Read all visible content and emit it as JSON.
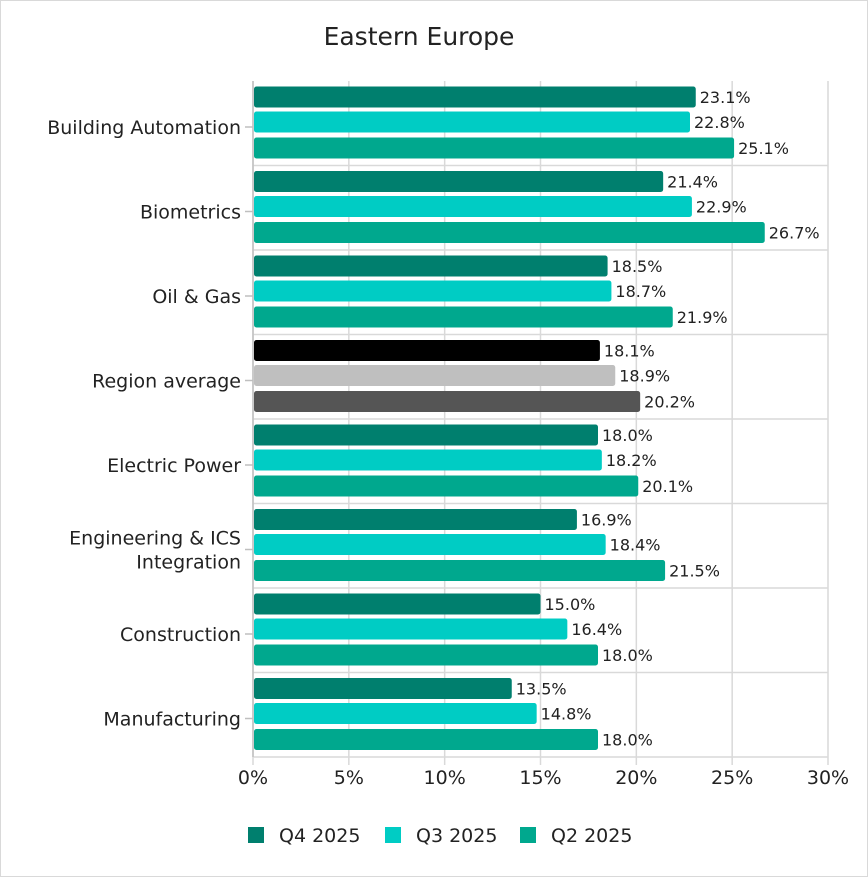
{
  "chart_data": {
    "type": "bar",
    "orientation": "horizontal",
    "title": "Eastern Europe",
    "xlabel": "",
    "ylabel": "",
    "xlim": [
      0,
      30
    ],
    "x_ticks": [
      "0%",
      "5%",
      "10%",
      "15%",
      "20%",
      "25%",
      "30%"
    ],
    "grid": true,
    "legend_position": "bottom",
    "categories": [
      "Building Automation",
      "Biometrics",
      "Oil & Gas",
      "Region average",
      "Electric Power",
      "Engineering & ICS Integration",
      "Construction",
      "Manufacturing"
    ],
    "category_lines": [
      [
        "Building Automation"
      ],
      [
        "Biometrics"
      ],
      [
        "Oil & Gas"
      ],
      [
        "Region average"
      ],
      [
        "Electric Power"
      ],
      [
        "Engineering & ICS",
        "Integration"
      ],
      [
        "Construction"
      ],
      [
        "Manufacturing"
      ]
    ],
    "series": [
      {
        "name": "Q4 2025",
        "color": "#007f6e",
        "values": [
          23.1,
          21.4,
          18.5,
          18.1,
          18.0,
          16.9,
          15.0,
          13.5
        ],
        "labels": [
          "23.1%",
          "21.4%",
          "18.5%",
          "18.1%",
          "18.0%",
          "16.9%",
          "15.0%",
          "13.5%"
        ]
      },
      {
        "name": "Q3 2025",
        "color": "#00ccc4",
        "values": [
          22.8,
          22.9,
          18.7,
          18.9,
          18.2,
          18.4,
          16.4,
          14.8
        ],
        "labels": [
          "22.8%",
          "22.9%",
          "18.7%",
          "18.9%",
          "18.2%",
          "18.4%",
          "16.4%",
          "14.8%"
        ]
      },
      {
        "name": "Q2 2025",
        "color": "#00a88e",
        "values": [
          25.1,
          26.7,
          21.9,
          20.2,
          20.1,
          21.5,
          18.0,
          18.0
        ],
        "labels": [
          "25.1%",
          "26.7%",
          "21.9%",
          "20.2%",
          "20.1%",
          "21.5%",
          "18.0%",
          "18.0%"
        ]
      }
    ],
    "highlight_category": "Region average",
    "highlight_colors": [
      "#000000",
      "#bfbfbf",
      "#555555"
    ]
  }
}
